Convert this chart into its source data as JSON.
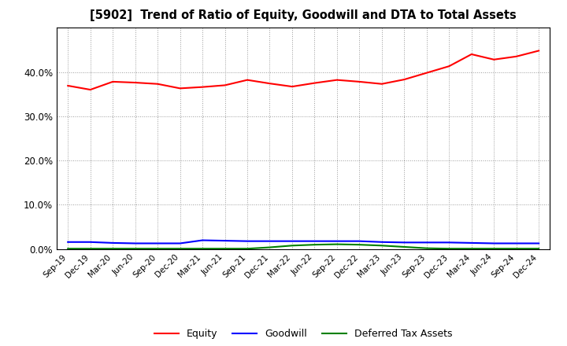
{
  "title": "[5902]  Trend of Ratio of Equity, Goodwill and DTA to Total Assets",
  "x_labels": [
    "Sep-19",
    "Dec-19",
    "Mar-20",
    "Jun-20",
    "Sep-20",
    "Dec-20",
    "Mar-21",
    "Jun-21",
    "Sep-21",
    "Dec-21",
    "Mar-22",
    "Jun-22",
    "Sep-22",
    "Dec-22",
    "Mar-23",
    "Jun-23",
    "Sep-23",
    "Dec-23",
    "Mar-24",
    "Jun-24",
    "Sep-24",
    "Dec-24"
  ],
  "equity": [
    0.369,
    0.36,
    0.378,
    0.376,
    0.373,
    0.363,
    0.366,
    0.37,
    0.382,
    0.374,
    0.367,
    0.375,
    0.382,
    0.378,
    0.373,
    0.383,
    0.398,
    0.413,
    0.44,
    0.428,
    0.435,
    0.448
  ],
  "goodwill": [
    0.016,
    0.016,
    0.014,
    0.013,
    0.013,
    0.013,
    0.02,
    0.019,
    0.018,
    0.018,
    0.018,
    0.018,
    0.018,
    0.018,
    0.016,
    0.015,
    0.015,
    0.015,
    0.014,
    0.013,
    0.013,
    0.013
  ],
  "dta": [
    0.001,
    0.001,
    0.001,
    0.001,
    0.001,
    0.001,
    0.001,
    0.001,
    0.001,
    0.004,
    0.008,
    0.01,
    0.011,
    0.01,
    0.008,
    0.005,
    0.002,
    0.001,
    0.001,
    0.001,
    0.001,
    0.001
  ],
  "equity_color": "#FF0000",
  "goodwill_color": "#0000FF",
  "dta_color": "#008000",
  "background_color": "#FFFFFF",
  "plot_bg_color": "#FFFFFF",
  "grid_color": "#999999",
  "ylim": [
    0.0,
    0.5
  ],
  "yticks": [
    0.0,
    0.1,
    0.2,
    0.3,
    0.4
  ],
  "legend_labels": [
    "Equity",
    "Goodwill",
    "Deferred Tax Assets"
  ]
}
